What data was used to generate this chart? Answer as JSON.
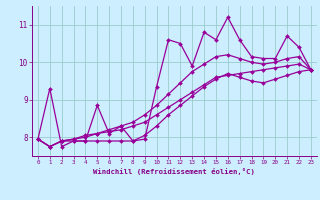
{
  "xlabel": "Windchill (Refroidissement éolien,°C)",
  "bg_color": "#cceeff",
  "line_color": "#990099",
  "grid_color": "#99cccc",
  "tick_label_color": "#880088",
  "xlabel_color": "#880088",
  "xlim": [
    -0.5,
    23.5
  ],
  "ylim": [
    7.5,
    11.5
  ],
  "yticks": [
    8,
    9,
    10,
    11
  ],
  "xticks": [
    0,
    1,
    2,
    3,
    4,
    5,
    6,
    7,
    8,
    9,
    10,
    11,
    12,
    13,
    14,
    15,
    16,
    17,
    18,
    19,
    20,
    21,
    22,
    23
  ],
  "series": [
    [
      7.95,
      9.3,
      7.75,
      7.9,
      7.9,
      8.85,
      8.1,
      8.3,
      7.9,
      7.95,
      9.35,
      10.6,
      10.5,
      9.9,
      10.8,
      10.6,
      11.2,
      10.6,
      10.15,
      10.1,
      10.1,
      10.7,
      10.4,
      9.8
    ],
    [
      7.95,
      7.75,
      7.9,
      7.9,
      7.9,
      7.9,
      7.9,
      7.9,
      7.9,
      8.05,
      8.3,
      8.6,
      8.85,
      9.1,
      9.35,
      9.55,
      9.7,
      9.6,
      9.5,
      9.45,
      9.55,
      9.65,
      9.75,
      9.8
    ],
    [
      7.95,
      7.75,
      7.9,
      7.95,
      8.05,
      8.1,
      8.15,
      8.2,
      8.3,
      8.4,
      8.6,
      8.8,
      9.0,
      9.2,
      9.4,
      9.6,
      9.65,
      9.7,
      9.75,
      9.8,
      9.85,
      9.9,
      9.95,
      9.8
    ],
    [
      7.95,
      7.75,
      7.9,
      7.95,
      8.0,
      8.1,
      8.2,
      8.3,
      8.4,
      8.6,
      8.85,
      9.15,
      9.45,
      9.75,
      9.95,
      10.15,
      10.2,
      10.1,
      10.0,
      9.95,
      10.0,
      10.1,
      10.15,
      9.8
    ]
  ],
  "marker": "D",
  "markersize": 2.0,
  "linewidth": 0.9
}
